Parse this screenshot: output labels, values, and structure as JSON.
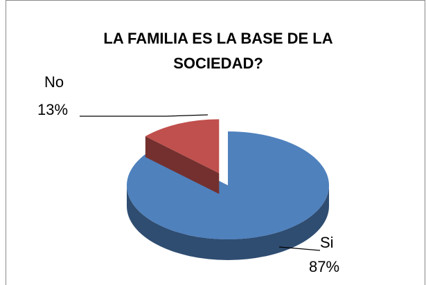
{
  "chart_data": {
    "type": "pie",
    "title": "LA FAMILIA ES LA BASE DE LA SOCIEDAD?",
    "categories": [
      "Si",
      "No"
    ],
    "values": [
      87,
      13
    ],
    "value_labels": [
      "87%",
      "13%"
    ],
    "colors": [
      "#4f81bd",
      "#c0504d"
    ],
    "exploded": "No",
    "three_d": true
  }
}
